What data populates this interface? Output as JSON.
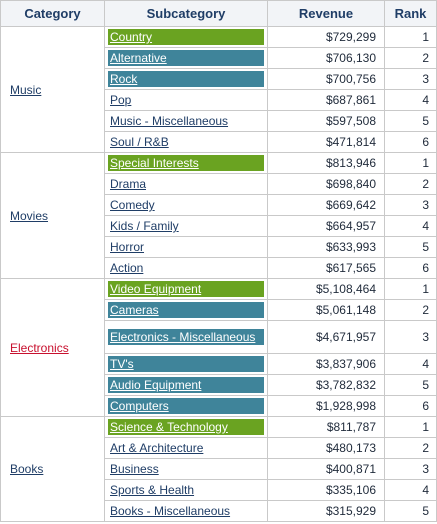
{
  "columns": {
    "category": "Category",
    "subcategory": "Subcategory",
    "revenue": "Revenue",
    "rank": "Rank"
  },
  "groups": [
    {
      "category": "Music",
      "active": false,
      "rows": [
        {
          "sub": "Country",
          "revenue": "$729,299",
          "rank": "1",
          "highlight": "green"
        },
        {
          "sub": "Alternative",
          "revenue": "$706,130",
          "rank": "2",
          "highlight": "teal"
        },
        {
          "sub": "Rock",
          "revenue": "$700,756",
          "rank": "3",
          "highlight": "teal"
        },
        {
          "sub": "Pop",
          "revenue": "$687,861",
          "rank": "4",
          "highlight": "none"
        },
        {
          "sub": "Music - Miscellaneous",
          "revenue": "$597,508",
          "rank": "5",
          "highlight": "none"
        },
        {
          "sub": "Soul / R&B",
          "revenue": "$471,814",
          "rank": "6",
          "highlight": "none"
        }
      ]
    },
    {
      "category": "Movies",
      "active": false,
      "rows": [
        {
          "sub": "Special Interests",
          "revenue": "$813,946",
          "rank": "1",
          "highlight": "green"
        },
        {
          "sub": "Drama",
          "revenue": "$698,840",
          "rank": "2",
          "highlight": "none"
        },
        {
          "sub": "Comedy",
          "revenue": "$669,642",
          "rank": "3",
          "highlight": "none"
        },
        {
          "sub": "Kids / Family",
          "revenue": "$664,957",
          "rank": "4",
          "highlight": "none"
        },
        {
          "sub": "Horror",
          "revenue": "$633,993",
          "rank": "5",
          "highlight": "none"
        },
        {
          "sub": "Action",
          "revenue": "$617,565",
          "rank": "6",
          "highlight": "none"
        }
      ]
    },
    {
      "category": "Electronics",
      "active": true,
      "rows": [
        {
          "sub": "Video Equipment",
          "revenue": "$5,108,464",
          "rank": "1",
          "highlight": "green"
        },
        {
          "sub": "Cameras",
          "revenue": "$5,061,148",
          "rank": "2",
          "highlight": "teal"
        },
        {
          "sub": "Electronics - Miscellaneous",
          "revenue": "$4,671,957",
          "rank": "3",
          "highlight": "teal",
          "tall": true
        },
        {
          "sub": "TV's",
          "revenue": "$3,837,906",
          "rank": "4",
          "highlight": "teal"
        },
        {
          "sub": "Audio Equipment",
          "revenue": "$3,782,832",
          "rank": "5",
          "highlight": "teal"
        },
        {
          "sub": "Computers",
          "revenue": "$1,928,998",
          "rank": "6",
          "highlight": "teal"
        }
      ]
    },
    {
      "category": "Books",
      "active": false,
      "rows": [
        {
          "sub": "Science & Technology",
          "revenue": "$811,787",
          "rank": "1",
          "highlight": "green"
        },
        {
          "sub": "Art & Architecture",
          "revenue": "$480,173",
          "rank": "2",
          "highlight": "none"
        },
        {
          "sub": "Business",
          "revenue": "$400,871",
          "rank": "3",
          "highlight": "none"
        },
        {
          "sub": "Sports & Health",
          "revenue": "$335,106",
          "rank": "4",
          "highlight": "none"
        },
        {
          "sub": "Books - Miscellaneous",
          "revenue": "$315,929",
          "rank": "5",
          "highlight": "none"
        }
      ]
    }
  ]
}
